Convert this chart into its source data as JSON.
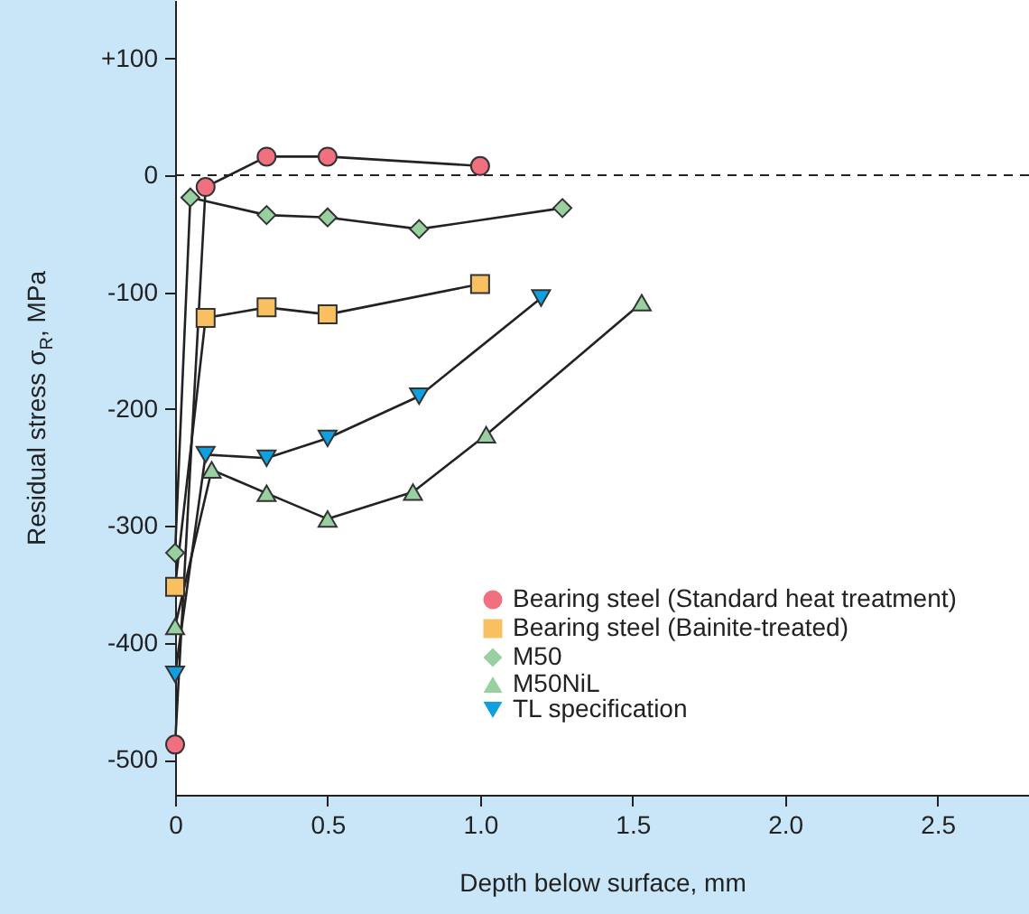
{
  "chart_data": {
    "type": "line",
    "xlabel": "Depth below surface, mm",
    "ylabel": "Residual stress σ$_{R}$, MPa",
    "xlim": [
      0,
      2.8
    ],
    "xticks": [
      0,
      0.5,
      {
        "value": 1,
        "label": "1.0"
      },
      1.5,
      {
        "value": 2,
        "label": "2.0"
      },
      2.5
    ],
    "ylim": [
      -530,
      150
    ],
    "yticks": [
      -500,
      -400,
      -300,
      -200,
      -100,
      0,
      {
        "value": 100,
        "label": "+100"
      }
    ],
    "grid": false,
    "legend": "bottom right",
    "line_style": "solid",
    "ref_lines": [
      {
        "axis": "y",
        "value": 0,
        "line_style": "dashed"
      }
    ],
    "series": [
      {
        "name": "Bearing steel (Standard heat treatment)",
        "color": "#f07080",
        "marker": "circle",
        "x": [
          0,
          0.1,
          0.3,
          0.5,
          1.0
        ],
        "values": [
          -487,
          -10,
          16,
          16,
          8
        ]
      },
      {
        "name": "Bearing steel (Bainite-treated)",
        "color": "#f8c060",
        "marker": "square",
        "x": [
          0,
          0.1,
          0.3,
          0.5,
          1.0
        ],
        "values": [
          -352,
          -122,
          -113,
          -119,
          -93
        ]
      },
      {
        "name": "M50",
        "color": "#98d0a0",
        "marker": "diamond",
        "x": [
          0,
          0.05,
          0.3,
          0.5,
          0.8,
          1.27
        ],
        "values": [
          -323,
          -19,
          -34,
          -36,
          -46,
          -28
        ]
      },
      {
        "name": "M50NiL",
        "color": "#98d0a0",
        "marker": "triangle",
        "x": [
          0,
          0.12,
          0.3,
          0.5,
          0.78,
          1.02,
          1.53
        ],
        "values": [
          -386,
          -252,
          -272,
          -294,
          -271,
          -222,
          -109
        ]
      },
      {
        "name": "TL specification",
        "color": "#10a0e0",
        "marker": "triangle-down",
        "x": [
          0,
          0.1,
          0.3,
          0.5,
          0.8,
          1.2
        ],
        "values": [
          -427,
          -239,
          -242,
          -225,
          -189,
          -105
        ]
      }
    ]
  }
}
